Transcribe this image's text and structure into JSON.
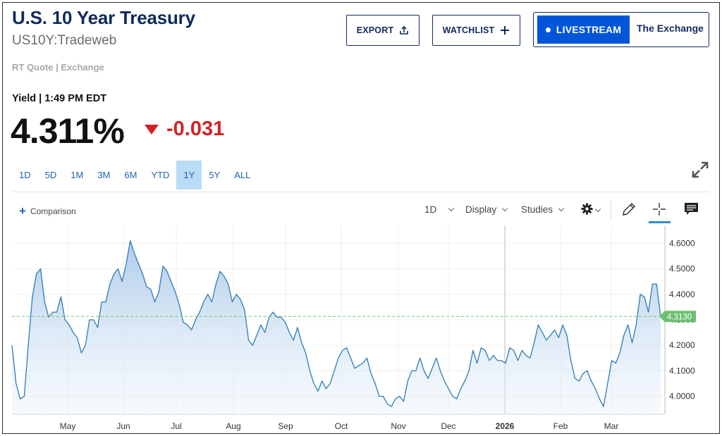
{
  "header": {
    "title": "U.S. 10 Year Treasury",
    "symbol": "US10Y:Tradeweb",
    "quote_source": "RT Quote | Exchange"
  },
  "actions": {
    "export_label": "EXPORT",
    "watchlist_label": "WATCHLIST",
    "livestream_label": "LIVESTREAM",
    "exchange_label": "The Exchange"
  },
  "quote": {
    "yield_label": "Yield | 1:49 PM EDT",
    "price": "4.311%",
    "change": "-0.031",
    "change_direction": "down"
  },
  "ranges": [
    "1D",
    "5D",
    "1M",
    "3M",
    "6M",
    "YTD",
    "1Y",
    "5Y",
    "ALL"
  ],
  "active_range": "1Y",
  "toolbar": {
    "comparison_label": "Comparison",
    "interval_label": "1D",
    "display_label": "Display",
    "studies_label": "Studies"
  },
  "icons": {
    "export": "upload-icon",
    "watchlist": "plus-icon",
    "expand": "expand-icon",
    "settings": "gear-icon",
    "draw": "pencil-icon",
    "crosshair": "crosshair-icon",
    "comment": "comment-icon"
  },
  "colors": {
    "title": "#102a5c",
    "accent_blue": "#0056d6",
    "link_blue": "#1c64b0",
    "negative": "#d32027",
    "line": "#2e7cb8",
    "last_price_badge": "#6fbf73"
  },
  "chart_data": {
    "type": "area",
    "x_axis_labels": [
      "May",
      "Jun",
      "Jul",
      "Aug",
      "Sep",
      "Oct",
      "Nov",
      "Dec",
      "2026",
      "Feb",
      "Mar"
    ],
    "y_ticks": [
      "4.6000",
      "4.5000",
      "4.4000",
      "4.3000",
      "4.2000",
      "4.1000",
      "4.0000"
    ],
    "ylim": [
      3.93,
      4.67
    ],
    "last_value_label": "4.3130",
    "last_value": 4.313,
    "grid": true,
    "series": [
      {
        "values": [
          4.2,
          4.05,
          3.99,
          4.0,
          4.2,
          4.39,
          4.48,
          4.5,
          4.37,
          4.31,
          4.33,
          4.33,
          4.39,
          4.3,
          4.28,
          4.25,
          4.23,
          4.17,
          4.2,
          4.3,
          4.3,
          4.27,
          4.37,
          4.37,
          4.44,
          4.48,
          4.5,
          4.45,
          4.52,
          4.61,
          4.56,
          4.52,
          4.48,
          4.43,
          4.42,
          4.37,
          4.41,
          4.51,
          4.49,
          4.45,
          4.41,
          4.36,
          4.29,
          4.28,
          4.26,
          4.3,
          4.33,
          4.37,
          4.4,
          4.37,
          4.44,
          4.49,
          4.47,
          4.44,
          4.37,
          4.4,
          4.38,
          4.34,
          4.22,
          4.2,
          4.24,
          4.28,
          4.25,
          4.31,
          4.33,
          4.31,
          4.31,
          4.29,
          4.25,
          4.22,
          4.27,
          4.21,
          4.17,
          4.1,
          4.05,
          4.02,
          4.06,
          4.03,
          4.05,
          4.1,
          4.15,
          4.18,
          4.19,
          4.15,
          4.11,
          4.12,
          4.13,
          4.15,
          4.09,
          4.05,
          4.0,
          4.0,
          3.97,
          3.96,
          3.99,
          4.0,
          3.98,
          4.06,
          4.1,
          4.1,
          4.15,
          4.1,
          4.07,
          4.11,
          4.15,
          4.1,
          4.06,
          4.03,
          4.0,
          3.99,
          4.03,
          4.06,
          4.1,
          4.18,
          4.13,
          4.19,
          4.18,
          4.14,
          4.16,
          4.14,
          4.14,
          4.13,
          4.19,
          4.18,
          4.14,
          4.18,
          4.16,
          4.15,
          4.21,
          4.28,
          4.25,
          4.22,
          4.24,
          4.26,
          4.23,
          4.28,
          4.24,
          4.14,
          4.07,
          4.06,
          4.09,
          4.1,
          4.06,
          4.03,
          3.99,
          3.96,
          4.05,
          4.14,
          4.13,
          4.17,
          4.24,
          4.28,
          4.21,
          4.28,
          4.4,
          4.39,
          4.33,
          4.44,
          4.44,
          4.313
        ]
      }
    ]
  }
}
